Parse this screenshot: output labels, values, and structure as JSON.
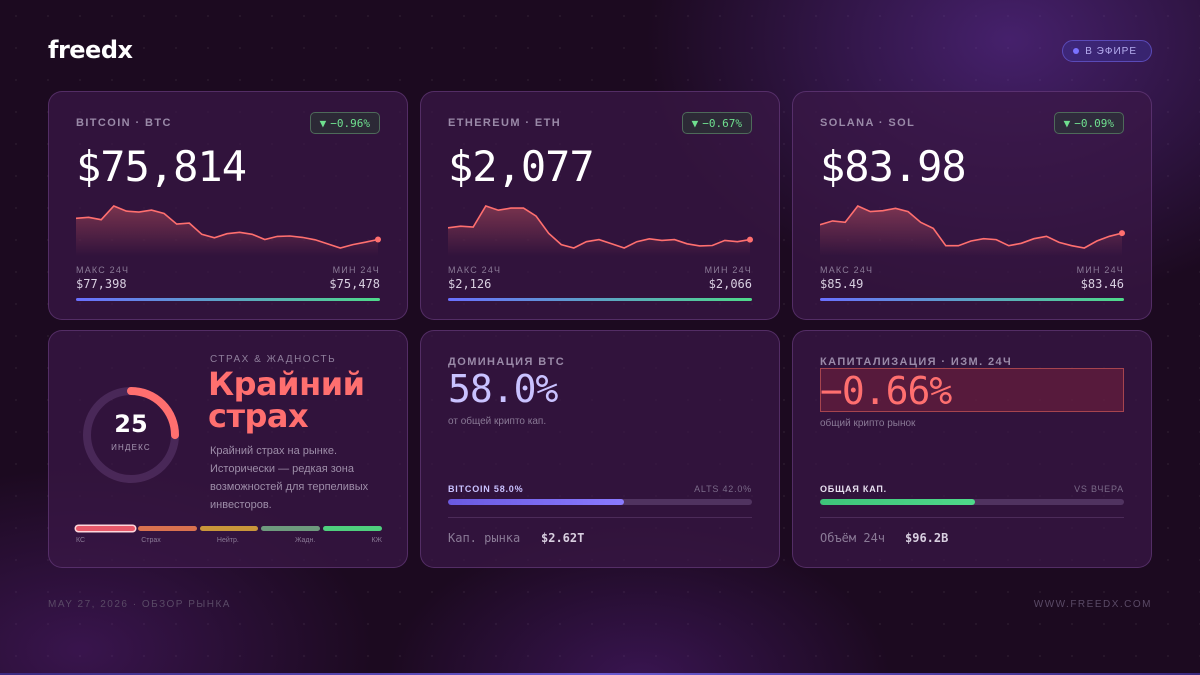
{
  "brand": {
    "logo": "freedx",
    "live_label": "В ЭФИРЕ"
  },
  "coins": [
    {
      "label": "BITCOIN · BTC",
      "change": "−0.96%",
      "price": "$75,814",
      "high_label": "МАКС 24Ч",
      "high": "$77,398",
      "low_label": "МИН 24Ч",
      "low": "$75,478",
      "spark": [
        0.62,
        0.65,
        0.58,
        0.98,
        0.83,
        0.8,
        0.86,
        0.76,
        0.45,
        0.48,
        0.15,
        0.05,
        0.17,
        0.21,
        0.15,
        0.0,
        0.09,
        0.1,
        0.06,
        -0.01,
        -0.13,
        -0.25,
        -0.15,
        -0.08,
        0.0
      ]
    },
    {
      "label": "ETHEREUM · ETH",
      "change": "−0.67%",
      "price": "$2,077",
      "high_label": "МАКС 24Ч",
      "high": "$2,126",
      "low_label": "МИН 24Ч",
      "low": "$2,066",
      "spark": [
        0.48,
        0.52,
        0.5,
        1.0,
        0.9,
        0.95,
        0.95,
        0.76,
        0.35,
        0.08,
        0.0,
        0.15,
        0.2,
        0.1,
        0.0,
        0.15,
        0.22,
        0.18,
        0.2,
        0.1,
        0.05,
        0.06,
        0.18,
        0.15,
        0.2
      ]
    },
    {
      "label": "SOLANA · SOL",
      "change": "−0.09%",
      "price": "$83.98",
      "high_label": "МАКС 24Ч",
      "high": "$85.49",
      "low_label": "МИН 24Ч",
      "low": "$83.46",
      "spark": [
        0.6,
        0.68,
        0.65,
        1.0,
        0.88,
        0.9,
        0.95,
        0.88,
        0.65,
        0.52,
        0.15,
        0.15,
        0.25,
        0.3,
        0.28,
        0.15,
        0.2,
        0.3,
        0.35,
        0.22,
        0.15,
        0.1,
        0.25,
        0.35,
        0.42
      ]
    }
  ],
  "fear_greed": {
    "label": "СТРАХ & ЖАДНОСТЬ",
    "title": "Крайний страх",
    "value": "25",
    "value_label": "ИНДЕКС",
    "level": 0.25,
    "description": "Крайний страх на рынке. Исторически — редкая зона возможностей для терпеливых инвесторов.",
    "scale": [
      "КС",
      "Страх",
      "Нейтр.",
      "Жадн.",
      "КЖ"
    ],
    "scale_colors": [
      "#e8586a",
      "#d9724f",
      "#c9963a",
      "#6e9a7e",
      "#4fcf7e"
    ]
  },
  "dominance": {
    "label": "ДОМИНАЦИЯ BTC",
    "value": "58.0%",
    "subtitle": "от общей крипто кап.",
    "bar_left": "BITCOIN 58.0%",
    "bar_right": "ALTS 42.0%",
    "fraction": 0.58,
    "footer_label": "Кап. рынка",
    "footer_value": "$2.62T"
  },
  "market_cap": {
    "label": "КАПИТАЛИЗАЦИЯ · ИЗМ. 24Ч",
    "value": "−0.66%",
    "subtitle": "общий крипто рынок",
    "bar_left": "ОБЩАЯ КАП.",
    "bar_right": "VS ВЧЕРА",
    "fraction": 0.51,
    "footer_label": "Объём 24ч",
    "footer_value": "$96.2B"
  },
  "footer": {
    "date": "MAY 27, 2026 · ОБЗОР РЫНКА",
    "site": "WWW.FREEDX.COM"
  },
  "colors": {
    "down": "#ff6f6f",
    "up": "#6fe08f",
    "accent": "#7a72ff"
  }
}
